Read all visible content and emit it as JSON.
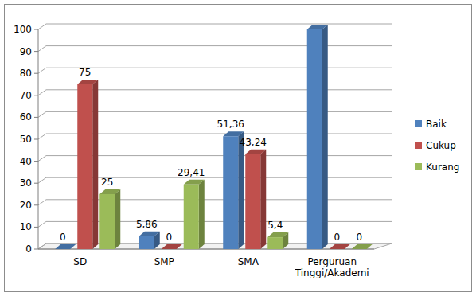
{
  "chart_data": {
    "type": "bar",
    "categories": [
      "SD",
      "SMP",
      "SMA",
      "Perguruan Tinggi/Akademi"
    ],
    "series": [
      {
        "name": "Baik",
        "color": "#4f81bd",
        "values": [
          0,
          5.86,
          51.36,
          100
        ],
        "value_labels": [
          "0",
          "5,86",
          "51,36",
          null
        ]
      },
      {
        "name": "Cukup",
        "color": "#c0504d",
        "values": [
          75,
          0,
          43.24,
          0
        ],
        "value_labels": [
          "75",
          "0",
          "43,24",
          "0"
        ]
      },
      {
        "name": "Kurang",
        "color": "#9bbb59",
        "values": [
          25,
          29.41,
          5.4,
          0
        ],
        "value_labels": [
          "25",
          "29,41",
          "5,4",
          "0"
        ]
      }
    ],
    "ylim": [
      0,
      100
    ],
    "yticks": [
      0,
      10,
      20,
      30,
      40,
      50,
      60,
      70,
      80,
      90,
      100
    ],
    "grid": true,
    "data_labels": true,
    "legend": "right"
  }
}
